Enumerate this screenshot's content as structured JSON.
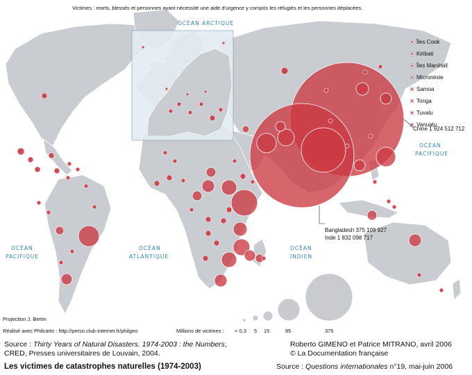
{
  "header": {
    "definition": "Victimes : morts, blessés et personnes ayant nécessité une aide d'urgence y compris les réfugiés et les personnes déplacées."
  },
  "oceans": {
    "arctique": "OCÉAN ARCTIQUE",
    "pacifique_est_1": "OCÉAN",
    "pacifique_est_2": "PACIFIQUE",
    "pacifique_ouest_1": "OCÉAN",
    "pacifique_ouest_2": "PACIFIQUE",
    "atlantique_1": "OCÉAN",
    "atlantique_2": "ATLANTIQUE",
    "indien_1": "OCÉAN",
    "indien_2": "INDIEN"
  },
  "islands": [
    "Îles Cook",
    "Kiribati",
    "Îles Marshall",
    "Micronésie",
    "Samoa",
    "Tonga",
    "Tuvalu",
    "Vanuatu"
  ],
  "callouts": {
    "chine": "Chine 1 924 512 712",
    "bangladesh": "Bangladesh 375 109 927",
    "inde": "Inde 1 832 098 717"
  },
  "legend": {
    "title": "Millions de victimes :",
    "items": [
      "< 0,3",
      "5",
      "15",
      "85",
      "375"
    ]
  },
  "credits": {
    "projection": "Projection J. Bertin",
    "philcarto": "Réalisé avec Philcarto : http://perso.club-internet.fr/philgeo"
  },
  "footer": {
    "source_prefix": "Source : ",
    "source_italic": "Thirty Years of Natural Disasters. 1974-2003 : the Numbers",
    "source_suffix": ",",
    "source_line2": "CRED, Presses universitaires de Louvain, 2004.",
    "authors": "Roberto GIMENO et Patrice MITRANO, avril 2006",
    "copyright": "© La Documentation française",
    "title": "Les victimes de catastrophes naturelles (1974-2003)",
    "source2_prefix": "Source : ",
    "source2_italic": "Questions internationales",
    "source2_suffix": " n°19, mai-juin 2006"
  },
  "colors": {
    "ocean": "#ffffff",
    "land": "#c9ccd0",
    "bubble": "#cc3a42",
    "legend_bubble": "#c9cbcf",
    "ocean_text": "#2f86b5"
  }
}
